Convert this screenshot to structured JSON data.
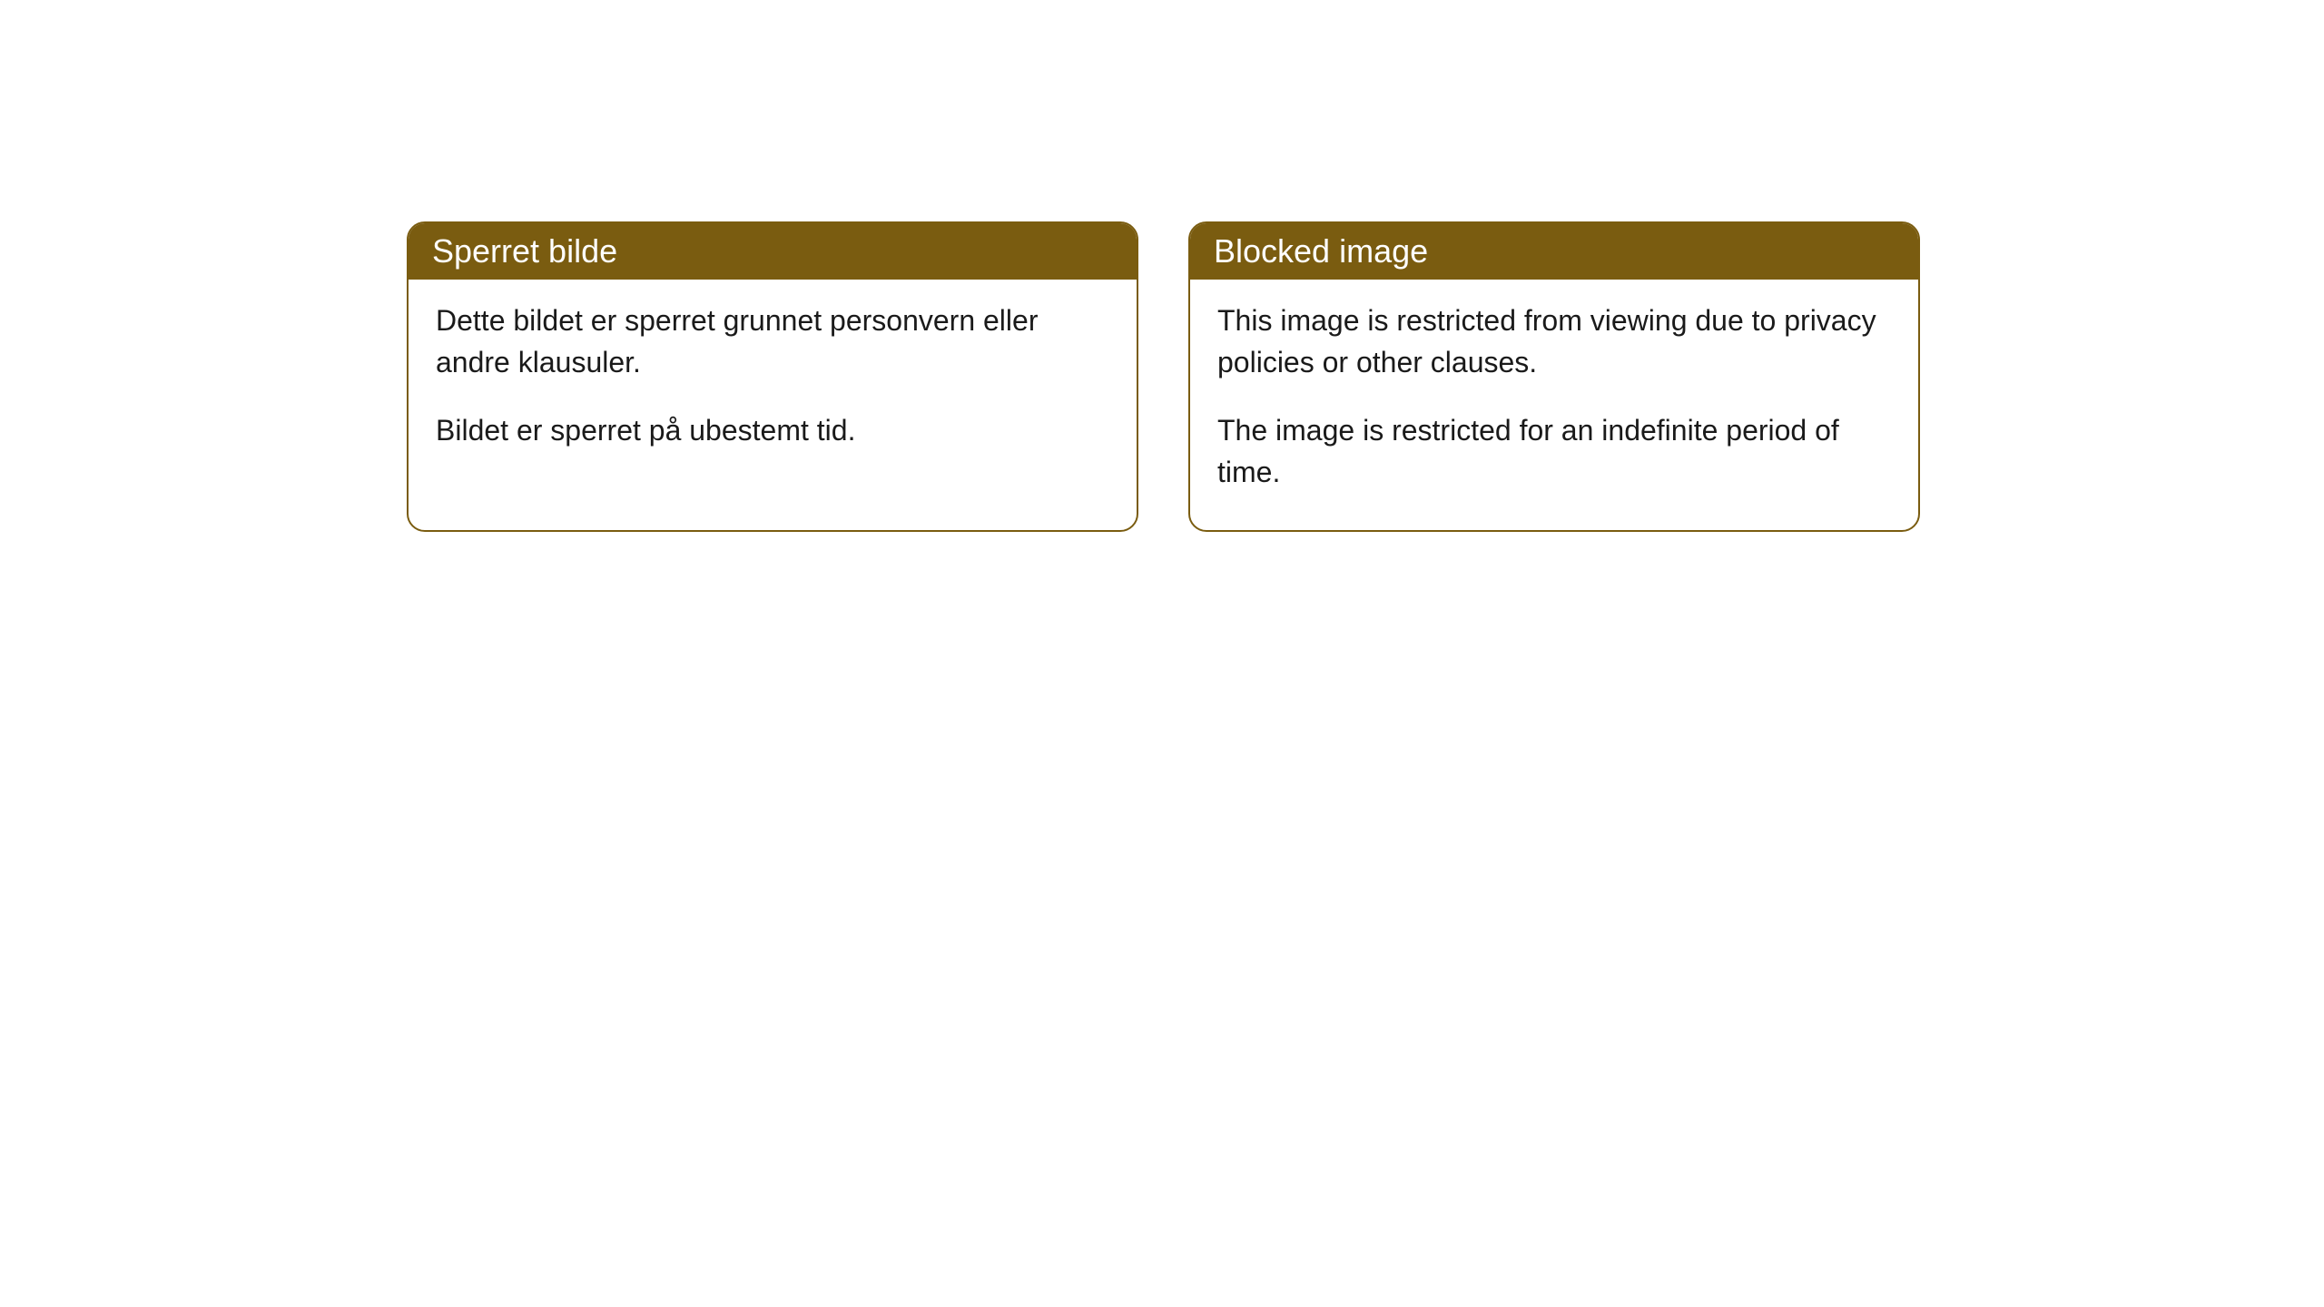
{
  "cards": [
    {
      "title": "Sperret bilde",
      "paragraph1": "Dette bildet er sperret grunnet personvern eller andre klausuler.",
      "paragraph2": "Bildet er sperret på ubestemt tid."
    },
    {
      "title": "Blocked image",
      "paragraph1": "This image is restricted from viewing due to privacy policies or other clauses.",
      "paragraph2": "The image is restricted for an indefinite period of time."
    }
  ],
  "style": {
    "header_background": "#7a5c10",
    "header_text_color": "#ffffff",
    "border_color": "#7a5c10",
    "body_background": "#ffffff",
    "body_text_color": "#1a1a1a",
    "border_radius": 20,
    "header_fontsize": 36,
    "body_fontsize": 32
  }
}
